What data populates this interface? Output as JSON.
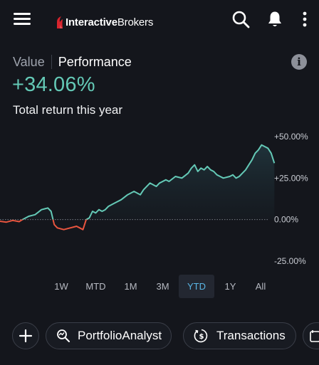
{
  "header": {
    "logo_bold": "Interactive",
    "logo_light": "Brokers",
    "icons": [
      "menu-icon",
      "search-icon",
      "bell-icon",
      "more-vertical-icon"
    ]
  },
  "segment": {
    "value_label": "Value",
    "performance_label": "Performance",
    "selected": "Performance"
  },
  "summary": {
    "return_value": "+34.06%",
    "caption": "Total return this year"
  },
  "chart_data": {
    "type": "line",
    "x_range": [
      0,
      100
    ],
    "ylim": [
      -25,
      50
    ],
    "y_ticks": [
      "+50.00%",
      "+25.00%",
      "0.00%",
      "-25.00%"
    ],
    "y_tick_values": [
      50,
      25,
      0,
      -25
    ],
    "baseline": 0,
    "colors": {
      "positive": "#64c9b6",
      "negative": "#e9553f",
      "baseline": "#7d818b"
    },
    "series": [
      {
        "values": [
          [
            0,
            -1
          ],
          [
            2,
            -1.5
          ],
          [
            4,
            -0.5
          ],
          [
            6,
            -1.2
          ],
          [
            7,
            0
          ],
          [
            9,
            2
          ],
          [
            11,
            3
          ],
          [
            12,
            4.5
          ],
          [
            13,
            6
          ],
          [
            14,
            6.5
          ],
          [
            15,
            7
          ],
          [
            16,
            5
          ],
          [
            17,
            -3
          ],
          [
            18,
            -5
          ],
          [
            20,
            -6
          ],
          [
            22,
            -5
          ],
          [
            24,
            -4
          ],
          [
            25,
            -5
          ],
          [
            26,
            -6
          ],
          [
            27,
            0
          ],
          [
            28,
            1
          ],
          [
            29,
            5
          ],
          [
            30,
            4
          ],
          [
            31,
            6
          ],
          [
            32,
            5
          ],
          [
            33,
            6
          ],
          [
            34,
            8
          ],
          [
            36,
            10
          ],
          [
            38,
            12
          ],
          [
            40,
            15
          ],
          [
            42,
            17
          ],
          [
            44,
            15
          ],
          [
            45,
            18
          ],
          [
            47,
            22
          ],
          [
            49,
            20
          ],
          [
            50,
            22
          ],
          [
            52,
            24
          ],
          [
            53,
            23
          ],
          [
            55,
            26
          ],
          [
            57,
            25
          ],
          [
            59,
            28
          ],
          [
            60,
            31
          ],
          [
            61,
            33
          ],
          [
            62,
            29
          ],
          [
            63,
            31
          ],
          [
            64,
            30
          ],
          [
            65,
            32
          ],
          [
            66,
            30
          ],
          [
            67,
            29
          ],
          [
            68,
            27
          ],
          [
            69,
            26
          ],
          [
            70,
            25
          ],
          [
            72,
            26
          ],
          [
            73,
            27
          ],
          [
            74,
            25
          ],
          [
            75,
            26
          ],
          [
            76,
            28
          ],
          [
            77,
            30
          ],
          [
            78,
            33
          ],
          [
            79,
            36
          ],
          [
            80,
            40
          ],
          [
            81,
            42
          ],
          [
            82,
            45
          ],
          [
            83,
            44
          ],
          [
            84,
            43
          ],
          [
            85,
            40
          ],
          [
            86,
            34
          ]
        ]
      }
    ]
  },
  "ranges": {
    "items": [
      "1W",
      "MTD",
      "1M",
      "3M",
      "YTD",
      "1Y",
      "All"
    ],
    "active": "YTD"
  },
  "quick_actions": {
    "add_icon": "plus-icon",
    "portfolio_analyst": "PortfolioAnalyst",
    "transactions": "Transactions"
  }
}
